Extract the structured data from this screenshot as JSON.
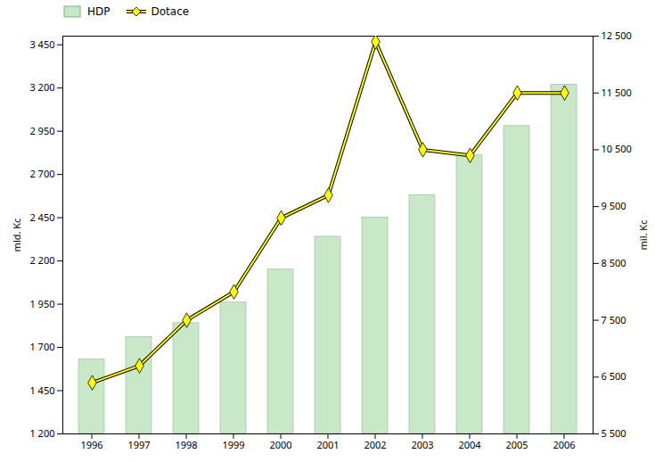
{
  "chart_data": {
    "type": "bar",
    "categories": [
      "1996",
      "1997",
      "1998",
      "1999",
      "2000",
      "2001",
      "2002",
      "2003",
      "2004",
      "2005",
      "2006"
    ],
    "series": [
      {
        "name": "HDP",
        "type": "bar",
        "color": "#c8e8c8",
        "values": [
          1630,
          1760,
          1840,
          1960,
          2150,
          2340,
          2450,
          2580,
          2810,
          2980,
          3220
        ]
      },
      {
        "name": "Dotace",
        "type": "line",
        "axis": "y2",
        "color": "#ffff00",
        "marker": "diamond",
        "values": [
          6400,
          6700,
          7500,
          8000,
          9300,
          9700,
          12400,
          10500,
          10400,
          11500,
          11500
        ]
      }
    ],
    "ylabel": "mld. Kc",
    "y2label": "mil. Kc",
    "ylim": [
      1200,
      3500
    ],
    "yticks": [
      {
        "value": 1200,
        "label": "1 200"
      },
      {
        "value": 1450,
        "label": "1 450"
      },
      {
        "value": 1700,
        "label": "1 700"
      },
      {
        "value": 1950,
        "label": "1 950"
      },
      {
        "value": 2200,
        "label": "2 200"
      },
      {
        "value": 2450,
        "label": "2 450"
      },
      {
        "value": 2700,
        "label": "2 700"
      },
      {
        "value": 2950,
        "label": "2 950"
      },
      {
        "value": 3200,
        "label": "3 200"
      },
      {
        "value": 3450,
        "label": "3 450"
      }
    ],
    "y2lim": [
      5500,
      12500
    ],
    "y2ticks": [
      {
        "value": 5500,
        "label": "5 500"
      },
      {
        "value": 6500,
        "label": "6 500"
      },
      {
        "value": 7500,
        "label": "7 500"
      },
      {
        "value": 8500,
        "label": "8 500"
      },
      {
        "value": 9500,
        "label": "9 500"
      },
      {
        "value": 10500,
        "label": "10 500"
      },
      {
        "value": 11500,
        "label": "11 500"
      },
      {
        "value": 12500,
        "label": "12 500"
      }
    ],
    "grid": false,
    "legend": "upper left"
  }
}
